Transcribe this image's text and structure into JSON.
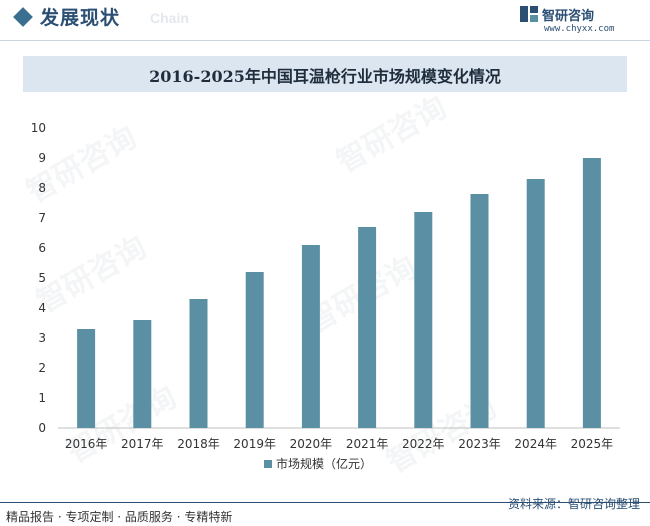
{
  "header": {
    "section_title": "发展现状",
    "section_subtitle": "Chain",
    "brand_name": "智研咨询",
    "brand_url": "www.chyxx.com"
  },
  "chart_data": {
    "type": "bar",
    "title": "2016-2025年中国耳温枪行业市场规模变化情况",
    "categories": [
      "2016年",
      "2017年",
      "2018年",
      "2019年",
      "2020年",
      "2021年",
      "2022年",
      "2023年",
      "2024年",
      "2025年"
    ],
    "series": [
      {
        "name": "市场规模（亿元）",
        "values": [
          3.3,
          3.6,
          4.3,
          5.2,
          6.1,
          6.7,
          7.2,
          7.8,
          8.3,
          9.0
        ]
      }
    ],
    "ylim": [
      0,
      10
    ],
    "yticks": [
      0,
      1,
      2,
      3,
      4,
      5,
      6,
      7,
      8,
      9,
      10
    ],
    "xlabel": "",
    "ylabel": "",
    "grid": false,
    "legend_position": "bottom",
    "bar_color": "#5b8fa3"
  },
  "watermark": "智研咨询",
  "footer": {
    "left": "精品报告 · 专项定制 · 品质服务 · 专精特新",
    "source": "资料来源：智研咨询整理"
  }
}
